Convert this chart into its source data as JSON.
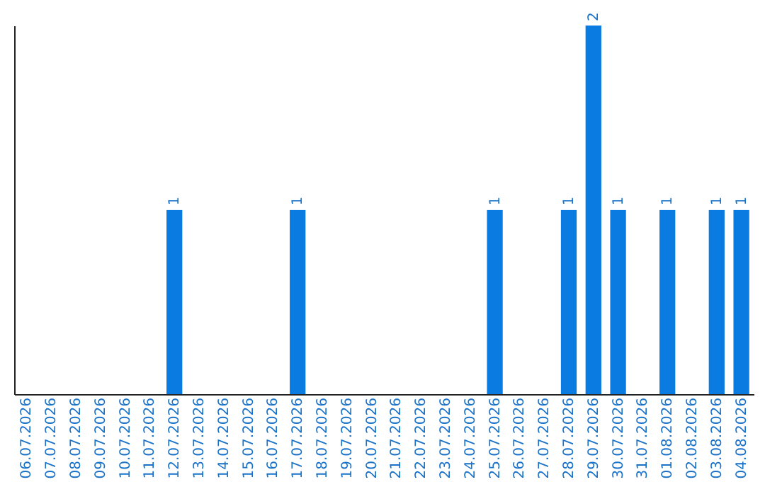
{
  "chart_data": {
    "type": "bar",
    "categories": [
      "06.07.2026",
      "07.07.2026",
      "08.07.2026",
      "09.07.2026",
      "10.07.2026",
      "11.07.2026",
      "12.07.2026",
      "13.07.2026",
      "14.07.2026",
      "15.07.2026",
      "16.07.2026",
      "17.07.2026",
      "18.07.2026",
      "19.07.2026",
      "20.07.2026",
      "21.07.2026",
      "22.07.2026",
      "23.07.2026",
      "24.07.2026",
      "25.07.2026",
      "26.07.2026",
      "27.07.2026",
      "28.07.2026",
      "29.07.2026",
      "30.07.2026",
      "31.07.2026",
      "01.08.2026",
      "02.08.2026",
      "03.08.2026",
      "04.08.2026"
    ],
    "values": [
      0,
      0,
      0,
      0,
      0,
      0,
      1,
      0,
      0,
      0,
      0,
      1,
      0,
      0,
      0,
      0,
      0,
      0,
      0,
      1,
      0,
      0,
      1,
      2,
      1,
      0,
      1,
      0,
      1,
      1
    ],
    "value_labels": [
      null,
      null,
      null,
      null,
      null,
      null,
      "1",
      null,
      null,
      null,
      null,
      "1",
      null,
      null,
      null,
      null,
      null,
      null,
      null,
      "1",
      null,
      null,
      "1",
      "2",
      "1",
      null,
      "1",
      null,
      "1",
      "1"
    ],
    "color": "#0a7be0",
    "tick_labels": "x",
    "grid": false
  }
}
